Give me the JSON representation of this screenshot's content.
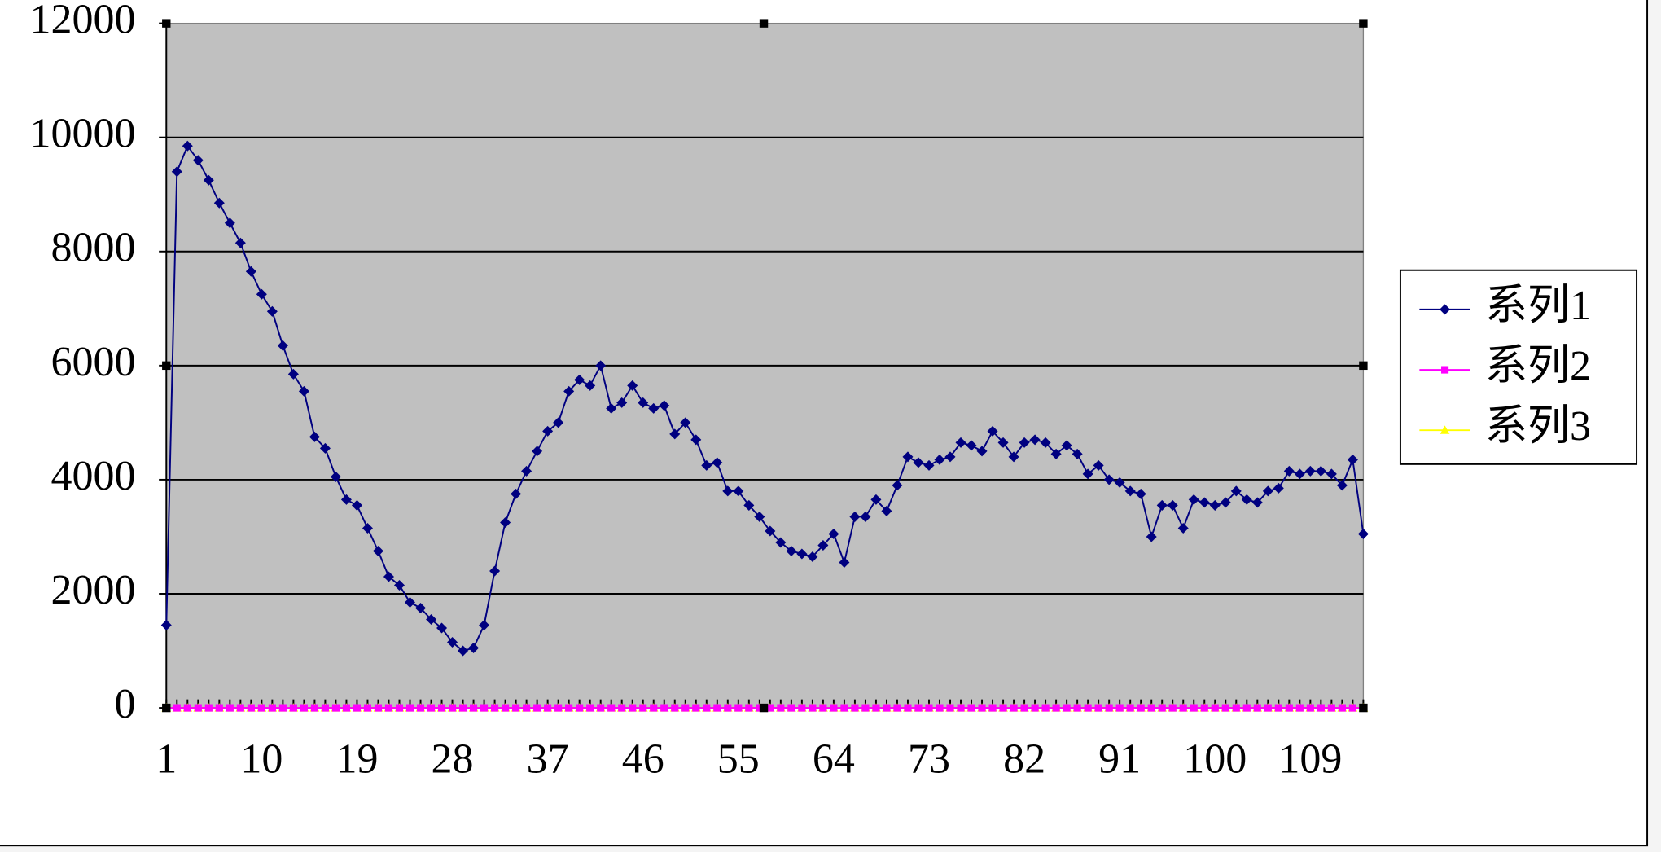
{
  "chart_data": {
    "type": "line",
    "categories": [
      "1",
      null,
      null,
      null,
      null,
      null,
      null,
      null,
      null,
      "10",
      null,
      null,
      null,
      null,
      null,
      null,
      null,
      null,
      "19",
      null,
      null,
      null,
      null,
      null,
      null,
      null,
      null,
      "28",
      null,
      null,
      null,
      null,
      null,
      null,
      null,
      null,
      "37",
      null,
      null,
      null,
      null,
      null,
      null,
      null,
      null,
      "46",
      null,
      null,
      null,
      null,
      null,
      null,
      null,
      null,
      "55",
      null,
      null,
      null,
      null,
      null,
      null,
      null,
      null,
      "64",
      null,
      null,
      null,
      null,
      null,
      null,
      null,
      null,
      "73",
      null,
      null,
      null,
      null,
      null,
      null,
      null,
      null,
      "82",
      null,
      null,
      null,
      null,
      null,
      null,
      null,
      null,
      "91",
      null,
      null,
      null,
      null,
      null,
      null,
      null,
      null,
      "100",
      null,
      null,
      null,
      null,
      null,
      null,
      null,
      null,
      "109",
      null,
      null,
      null,
      null,
      null
    ],
    "series": [
      {
        "name": "系列1",
        "color": "#000080",
        "marker": "diamond",
        "values": [
          1450,
          9400,
          9850,
          9600,
          9250,
          8850,
          8500,
          8150,
          7650,
          7250,
          6950,
          6350,
          5850,
          5550,
          4750,
          4550,
          4050,
          3650,
          3550,
          3150,
          2750,
          2300,
          2150,
          1850,
          1750,
          1550,
          1400,
          1150,
          1000,
          1050,
          1450,
          2400,
          3250,
          3750,
          4150,
          4500,
          4850,
          5000,
          5550,
          5750,
          5650,
          6000,
          5250,
          5350,
          5650,
          5350,
          5250,
          5300,
          4800,
          5000,
          4700,
          4250,
          4300,
          3800,
          3800,
          3550,
          3350,
          3100,
          2900,
          2750,
          2700,
          2650,
          2850,
          3050,
          2550,
          3350,
          3350,
          3650,
          3450,
          3900,
          4400,
          4300,
          4250,
          4350,
          4400,
          4650,
          4600,
          4500,
          4850,
          4650,
          4400,
          4650,
          4700,
          4650,
          4450,
          4600,
          4450,
          4100,
          4250,
          4000,
          3950,
          3800,
          3750,
          3000,
          3550,
          3550,
          3150,
          3650,
          3600,
          3550,
          3600,
          3800,
          3650,
          3600,
          3800,
          3850,
          4150,
          4100,
          4150,
          4150,
          4100,
          3900,
          4350,
          3050
        ]
      },
      {
        "name": "系列2",
        "color": "#ff00ff",
        "marker": "square",
        "values": [
          0,
          0,
          0,
          0,
          0,
          0,
          0,
          0,
          0,
          0,
          0,
          0,
          0,
          0,
          0,
          0,
          0,
          0,
          0,
          0,
          0,
          0,
          0,
          0,
          0,
          0,
          0,
          0,
          0,
          0,
          0,
          0,
          0,
          0,
          0,
          0,
          0,
          0,
          0,
          0,
          0,
          0,
          0,
          0,
          0,
          0,
          0,
          0,
          0,
          0,
          0,
          0,
          0,
          0,
          0,
          0,
          0,
          0,
          0,
          0,
          0,
          0,
          0,
          0,
          0,
          0,
          0,
          0,
          0,
          0,
          0,
          0,
          0,
          0,
          0,
          0,
          0,
          0,
          0,
          0,
          0,
          0,
          0,
          0,
          0,
          0,
          0,
          0,
          0,
          0,
          0,
          0,
          0,
          0,
          0,
          0,
          0,
          0,
          0,
          0,
          0,
          0,
          0,
          0,
          0,
          0,
          0,
          0,
          0,
          0,
          0,
          0,
          0,
          0
        ]
      },
      {
        "name": "系列3",
        "color": "#ffff00",
        "marker": "triangle",
        "values": [
          0,
          0,
          0,
          0,
          0,
          0,
          0,
          0,
          0,
          0,
          0,
          0,
          0,
          0,
          0,
          0,
          0,
          0,
          0,
          0,
          0,
          0,
          0,
          0,
          0,
          0,
          0,
          0,
          0,
          0,
          0,
          0,
          0,
          0,
          0,
          0,
          0,
          0,
          0,
          0,
          0,
          0,
          0,
          0,
          0,
          0,
          0,
          0,
          0,
          0,
          0,
          0,
          0,
          0,
          0,
          0,
          0,
          0,
          0,
          0,
          0,
          0,
          0,
          0,
          0,
          0,
          0,
          0,
          0,
          0,
          0,
          0,
          0,
          0,
          0,
          0,
          0,
          0,
          0,
          0,
          0,
          0,
          0,
          0,
          0,
          0,
          0,
          0,
          0,
          0,
          0,
          0,
          0,
          0,
          0,
          0,
          0,
          0,
          0,
          0,
          0,
          0,
          0,
          0,
          0,
          0,
          0,
          0,
          0,
          0,
          0,
          0,
          0,
          0
        ]
      }
    ],
    "ylim": [
      0,
      12000
    ],
    "yticks": [
      0,
      2000,
      4000,
      6000,
      8000,
      10000,
      12000
    ],
    "grid": true,
    "legend": "right"
  }
}
